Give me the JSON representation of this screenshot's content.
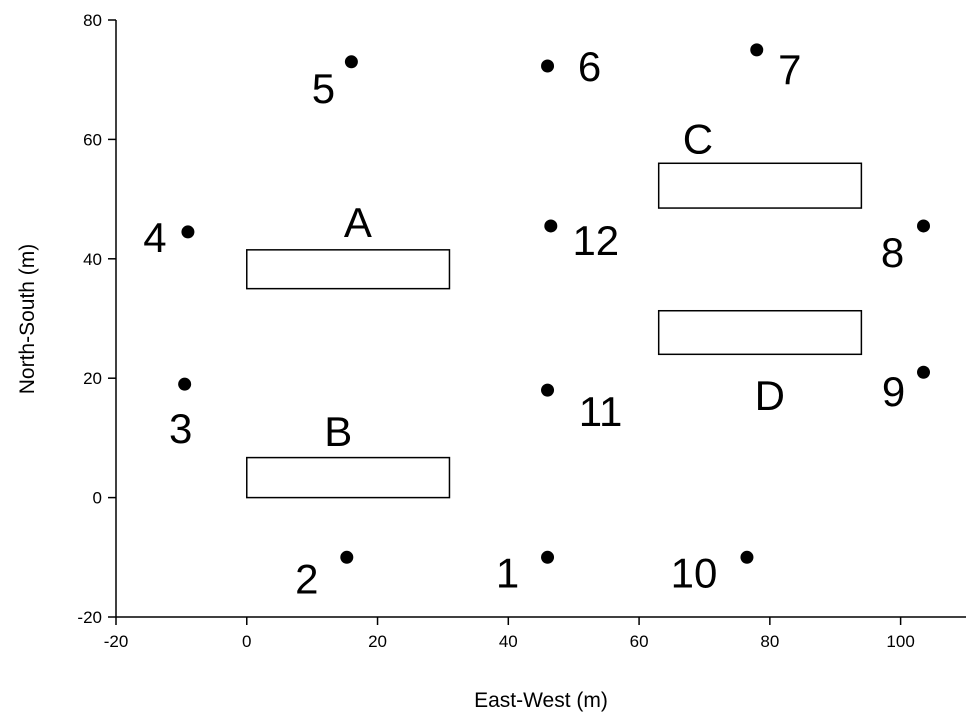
{
  "chart_data": {
    "type": "scatter",
    "title": "",
    "xlabel": "East-West (m)",
    "ylabel": "North-South (m)",
    "xlim": [
      -20,
      110
    ],
    "ylim": [
      -20,
      80
    ],
    "xticks": [
      -20,
      0,
      20,
      40,
      60,
      80,
      100
    ],
    "yticks": [
      -20,
      0,
      20,
      40,
      60,
      80
    ],
    "grid": false,
    "legend": "none",
    "points": [
      {
        "label": "1",
        "x": 46,
        "y": -10
      },
      {
        "label": "2",
        "x": 15.3,
        "y": -10
      },
      {
        "label": "3",
        "x": -9.5,
        "y": 19
      },
      {
        "label": "4",
        "x": -9,
        "y": 44.5
      },
      {
        "label": "5",
        "x": 16,
        "y": 73
      },
      {
        "label": "6",
        "x": 46,
        "y": 72.3
      },
      {
        "label": "7",
        "x": 78,
        "y": 75
      },
      {
        "label": "8",
        "x": 103.5,
        "y": 45.5
      },
      {
        "label": "9",
        "x": 103.5,
        "y": 21
      },
      {
        "label": "10",
        "x": 76.5,
        "y": -10
      },
      {
        "label": "11",
        "x": 46,
        "y": 18
      },
      {
        "label": "12",
        "x": 46.5,
        "y": 45.5
      }
    ],
    "rectangles": [
      {
        "label": "A",
        "x0": 0,
        "x1": 31,
        "y0": 35,
        "y1": 41.5
      },
      {
        "label": "B",
        "x0": 0,
        "x1": 31,
        "y0": 0,
        "y1": 6.7
      },
      {
        "label": "C",
        "x0": 63,
        "x1": 94,
        "y0": 48.5,
        "y1": 56
      },
      {
        "label": "D",
        "x0": 63,
        "x1": 94,
        "y0": 24,
        "y1": 31.3
      }
    ]
  }
}
